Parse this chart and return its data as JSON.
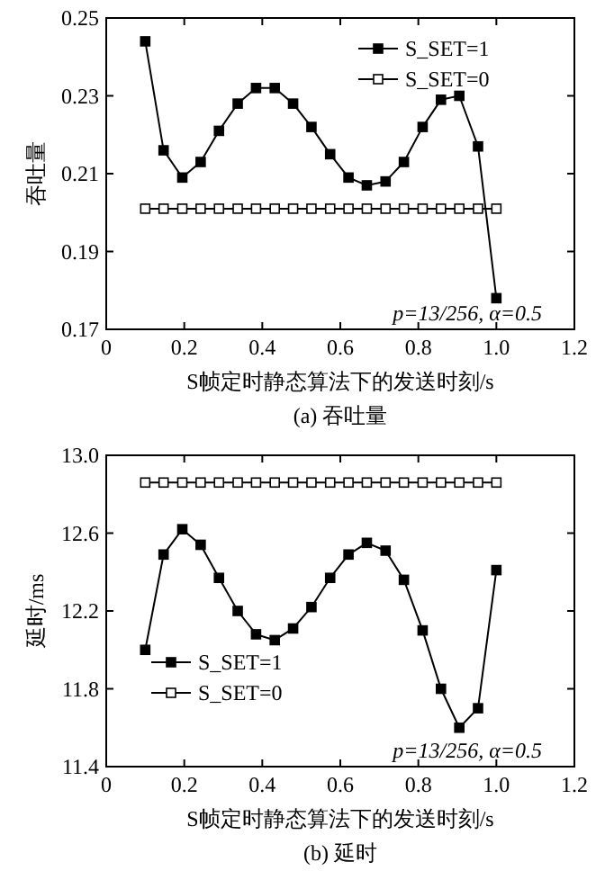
{
  "chart_data": [
    {
      "type": "line",
      "xlabel": "S帧定时静态算法下的发送时刻/s",
      "ylabel": "吞吐量",
      "annotations": [
        "p=13/256, α=0.5",
        "(a) 吞吐量"
      ],
      "x": [
        0.1,
        0.147,
        0.195,
        0.242,
        0.289,
        0.337,
        0.384,
        0.432,
        0.479,
        0.526,
        0.574,
        0.621,
        0.668,
        0.716,
        0.763,
        0.811,
        0.858,
        0.905,
        0.953,
        1.0
      ],
      "xlim": [
        0,
        1.2
      ],
      "xticks": [
        {
          "value": 0,
          "label": "0"
        },
        0.2,
        0.4,
        0.6,
        0.8,
        {
          "value": 1,
          "label": "1.0"
        },
        {
          "value": 1.2,
          "label": "1.2"
        }
      ],
      "ylim": [
        0.17,
        0.25
      ],
      "yticks": [
        0.17,
        0.19,
        0.21,
        0.23,
        0.25
      ],
      "legend": "top right",
      "marker": "square",
      "line_style": "solid",
      "grid": false,
      "series": [
        {
          "name": "S_SET=1",
          "color": "#000000",
          "values": [
            0.244,
            0.216,
            0.209,
            0.213,
            0.221,
            0.228,
            0.232,
            0.232,
            0.228,
            0.222,
            0.215,
            0.209,
            0.207,
            0.208,
            0.213,
            0.222,
            0.229,
            0.23,
            0.217,
            0.178
          ]
        },
        {
          "name": "S_SET=0",
          "color": "#000000",
          "values": [
            0.201,
            0.201,
            0.201,
            0.201,
            0.201,
            0.201,
            0.201,
            0.201,
            0.201,
            0.201,
            0.201,
            0.201,
            0.201,
            0.201,
            0.201,
            0.201,
            0.201,
            0.201,
            0.201,
            0.201
          ]
        }
      ]
    },
    {
      "type": "line",
      "xlabel": "S帧定时静态算法下的发送时刻/s",
      "ylabel": "延时/ms",
      "annotations": [
        "p=13/256, α=0.5",
        "(b) 延时"
      ],
      "x": [
        0.1,
        0.147,
        0.195,
        0.242,
        0.289,
        0.337,
        0.384,
        0.432,
        0.479,
        0.526,
        0.574,
        0.621,
        0.668,
        0.716,
        0.763,
        0.811,
        0.858,
        0.905,
        0.953,
        1.0
      ],
      "xlim": [
        0,
        1.2
      ],
      "xticks": [
        {
          "value": 0,
          "label": "0"
        },
        0.2,
        0.4,
        0.6,
        0.8,
        {
          "value": 1,
          "label": "1.0"
        },
        {
          "value": 1.2,
          "label": "1.2"
        }
      ],
      "ylim": [
        11.4,
        13.0
      ],
      "yticks": [
        {
          "value": 11.4,
          "label": "11.4"
        },
        11.8,
        12.2,
        12.6,
        {
          "value": 13,
          "label": "13.0"
        }
      ],
      "legend": "bottom left",
      "marker": "square",
      "line_style": "solid",
      "grid": false,
      "series": [
        {
          "name": "S_SET=1",
          "color": "#000000",
          "values": [
            12.0,
            12.49,
            12.62,
            12.54,
            12.37,
            12.2,
            12.08,
            12.05,
            12.11,
            12.22,
            12.37,
            12.49,
            12.55,
            12.51,
            12.36,
            12.1,
            11.8,
            11.6,
            11.7,
            12.41
          ]
        },
        {
          "name": "S_SET=0",
          "color": "#000000",
          "values": [
            12.86,
            12.86,
            12.86,
            12.86,
            12.86,
            12.86,
            12.86,
            12.86,
            12.86,
            12.86,
            12.86,
            12.86,
            12.86,
            12.86,
            12.86,
            12.86,
            12.86,
            12.86,
            12.86,
            12.86
          ]
        }
      ]
    }
  ]
}
